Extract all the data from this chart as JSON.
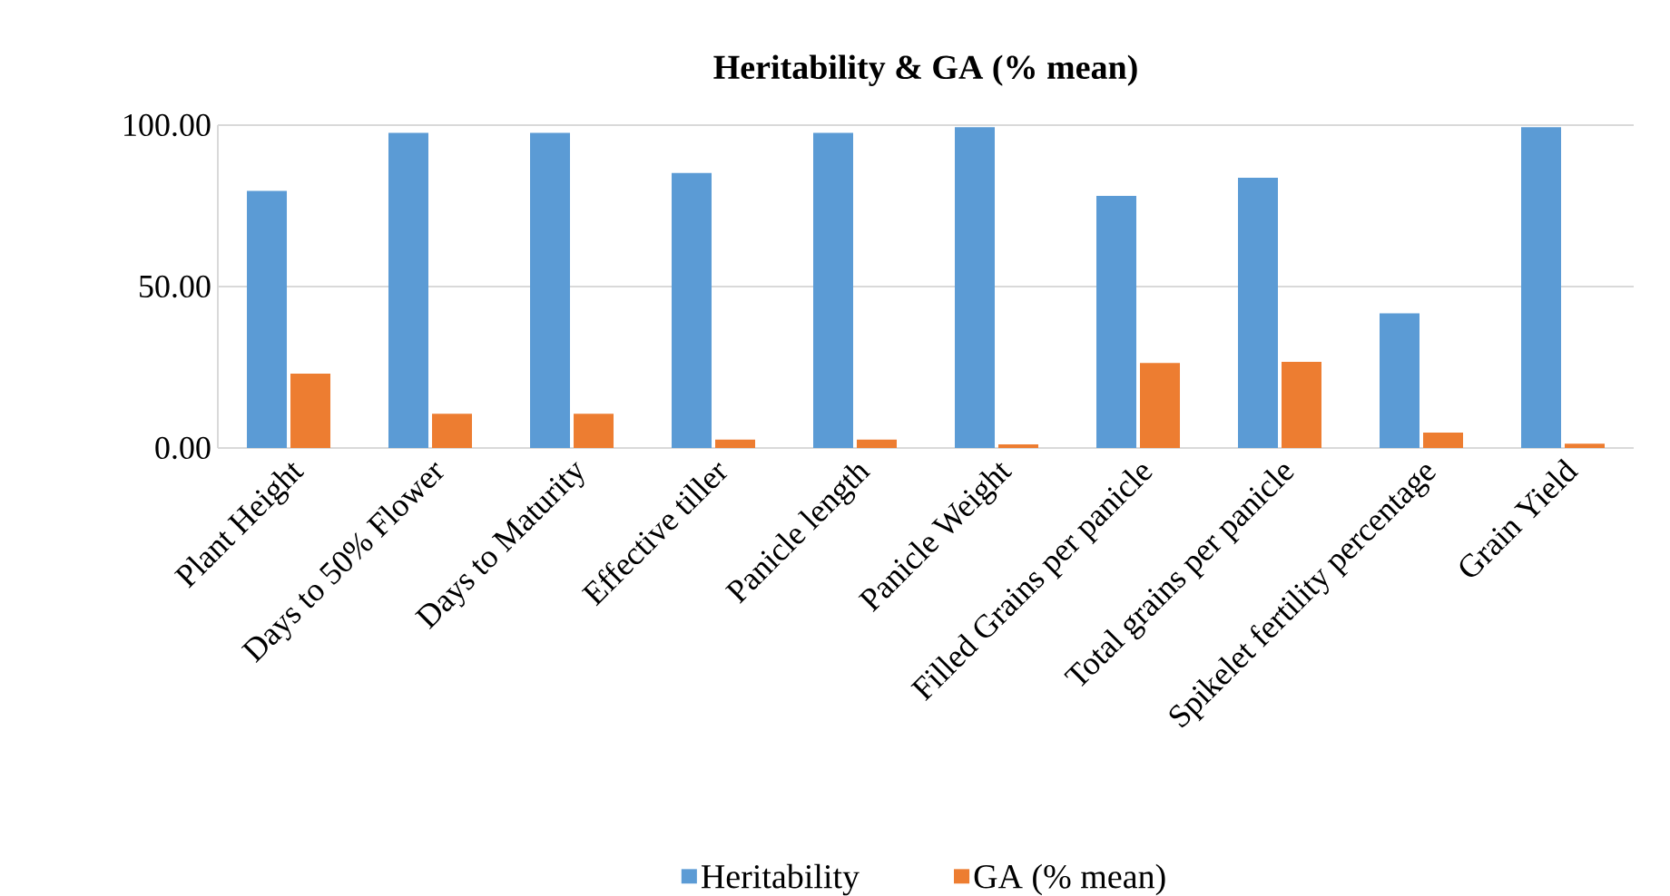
{
  "chart_data": {
    "type": "bar",
    "title": "Heritability & GA (% mean)",
    "categories": [
      "Plant Height",
      "Days to 50% Flower",
      "Days to Maturity",
      "Effective tiller",
      "Panicle length",
      "Panicle Weight",
      "Filled Grains per panicle",
      "Total grains per panicle",
      "Spikelet fertility percentage",
      "Grain Yield"
    ],
    "series": [
      {
        "name": "Heritability",
        "color": "#5b9bd5",
        "values": [
          79.6,
          97.6,
          97.6,
          85.2,
          97.6,
          99.4,
          78.1,
          83.7,
          41.7,
          99.4
        ]
      },
      {
        "name": "GA (% mean)",
        "color": "#ed7d31",
        "values": [
          23.0,
          10.6,
          10.6,
          2.6,
          2.6,
          1.1,
          26.3,
          26.7,
          4.8,
          1.3
        ]
      }
    ],
    "ylim": [
      0,
      100
    ],
    "yticks": [
      {
        "value": 0,
        "label": "0.00"
      },
      {
        "value": 50,
        "label": "50.00"
      },
      {
        "value": 100,
        "label": "100.00"
      }
    ],
    "grid": "y",
    "legend": "bottom"
  }
}
